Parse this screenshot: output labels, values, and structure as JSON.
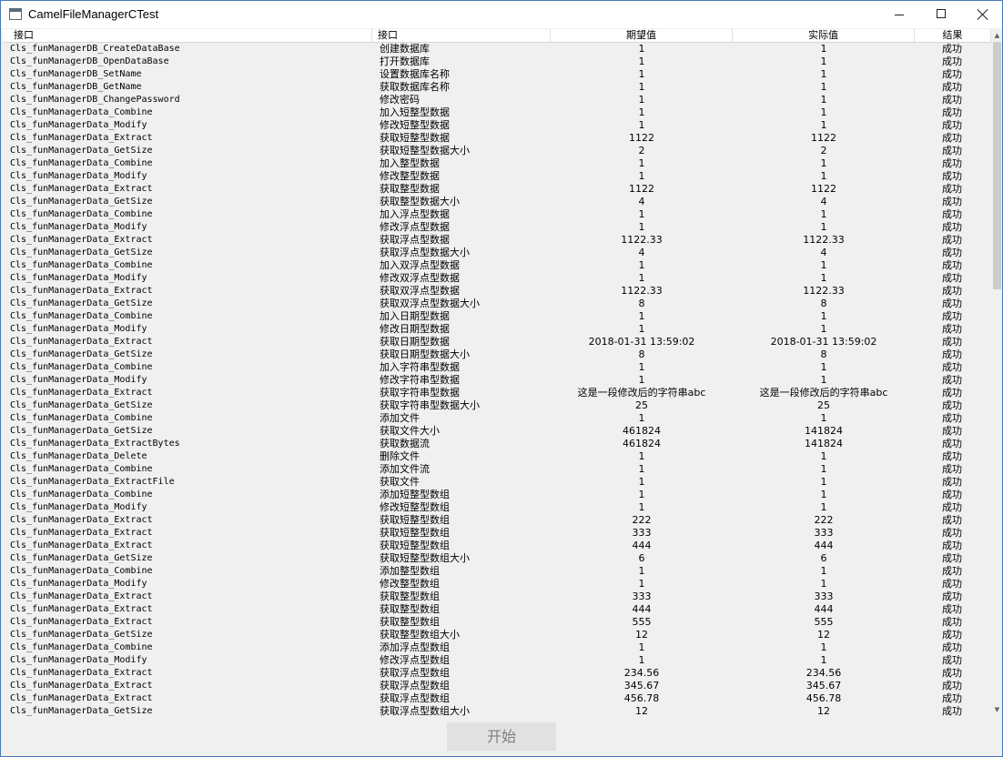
{
  "window": {
    "title": "CamelFileManagerCTest"
  },
  "table": {
    "headers": [
      "接口",
      "接口",
      "期望值",
      "实际值",
      "结果"
    ],
    "rows": [
      [
        "Cls_funManagerDB_CreateDataBase",
        "创建数据库",
        "1",
        "1",
        "成功"
      ],
      [
        "Cls_funManagerDB_OpenDataBase",
        "打开数据库",
        "1",
        "1",
        "成功"
      ],
      [
        "Cls_funManagerDB_SetName",
        "设置数据库名称",
        "1",
        "1",
        "成功"
      ],
      [
        "Cls_funManagerDB_GetName",
        "获取数据库名称",
        "1",
        "1",
        "成功"
      ],
      [
        "Cls_funManagerDB_ChangePassword",
        "修改密码",
        "1",
        "1",
        "成功"
      ],
      [
        "Cls_funManagerData_Combine",
        "加入短整型数据",
        "1",
        "1",
        "成功"
      ],
      [
        "Cls_funManagerData_Modify",
        "修改短整型数据",
        "1",
        "1",
        "成功"
      ],
      [
        "Cls_funManagerData_Extract",
        "获取短整型数据",
        "1122",
        "1122",
        "成功"
      ],
      [
        "Cls_funManagerData_GetSize",
        "获取短整型数据大小",
        "2",
        "2",
        "成功"
      ],
      [
        "Cls_funManagerData_Combine",
        "加入整型数据",
        "1",
        "1",
        "成功"
      ],
      [
        "Cls_funManagerData_Modify",
        "修改整型数据",
        "1",
        "1",
        "成功"
      ],
      [
        "Cls_funManagerData_Extract",
        "获取整型数据",
        "1122",
        "1122",
        "成功"
      ],
      [
        "Cls_funManagerData_GetSize",
        "获取整型数据大小",
        "4",
        "4",
        "成功"
      ],
      [
        "Cls_funManagerData_Combine",
        "加入浮点型数据",
        "1",
        "1",
        "成功"
      ],
      [
        "Cls_funManagerData_Modify",
        "修改浮点型数据",
        "1",
        "1",
        "成功"
      ],
      [
        "Cls_funManagerData_Extract",
        "获取浮点型数据",
        "1122.33",
        "1122.33",
        "成功"
      ],
      [
        "Cls_funManagerData_GetSize",
        "获取浮点型数据大小",
        "4",
        "4",
        "成功"
      ],
      [
        "Cls_funManagerData_Combine",
        "加入双浮点型数据",
        "1",
        "1",
        "成功"
      ],
      [
        "Cls_funManagerData_Modify",
        "修改双浮点型数据",
        "1",
        "1",
        "成功"
      ],
      [
        "Cls_funManagerData_Extract",
        "获取双浮点型数据",
        "1122.33",
        "1122.33",
        "成功"
      ],
      [
        "Cls_funManagerData_GetSize",
        "获取双浮点型数据大小",
        "8",
        "8",
        "成功"
      ],
      [
        "Cls_funManagerData_Combine",
        "加入日期型数据",
        "1",
        "1",
        "成功"
      ],
      [
        "Cls_funManagerData_Modify",
        "修改日期型数据",
        "1",
        "1",
        "成功"
      ],
      [
        "Cls_funManagerData_Extract",
        "获取日期型数据",
        "2018-01-31 13:59:02",
        "2018-01-31 13:59:02",
        "成功"
      ],
      [
        "Cls_funManagerData_GetSize",
        "获取日期型数据大小",
        "8",
        "8",
        "成功"
      ],
      [
        "Cls_funManagerData_Combine",
        "加入字符串型数据",
        "1",
        "1",
        "成功"
      ],
      [
        "Cls_funManagerData_Modify",
        "修改字符串型数据",
        "1",
        "1",
        "成功"
      ],
      [
        "Cls_funManagerData_Extract",
        "获取字符串型数据",
        "这是一段修改后的字符串abc",
        "这是一段修改后的字符串abc",
        "成功"
      ],
      [
        "Cls_funManagerData_GetSize",
        "获取字符串型数据大小",
        "25",
        "25",
        "成功"
      ],
      [
        "Cls_funManagerData_Combine",
        "添加文件",
        "1",
        "1",
        "成功"
      ],
      [
        "Cls_funManagerData_GetSize",
        "获取文件大小",
        "461824",
        "141824",
        "成功"
      ],
      [
        "Cls_funManagerData_ExtractBytes",
        "获取数据流",
        "461824",
        "141824",
        "成功"
      ],
      [
        "Cls_funManagerData_Delete",
        "删除文件",
        "1",
        "1",
        "成功"
      ],
      [
        "Cls_funManagerData_Combine",
        "添加文件流",
        "1",
        "1",
        "成功"
      ],
      [
        "Cls_funManagerData_ExtractFile",
        "获取文件",
        "1",
        "1",
        "成功"
      ],
      [
        "Cls_funManagerData_Combine",
        "添加短整型数组",
        "1",
        "1",
        "成功"
      ],
      [
        "Cls_funManagerData_Modify",
        "修改短整型数组",
        "1",
        "1",
        "成功"
      ],
      [
        "Cls_funManagerData_Extract",
        "获取短整型数组",
        "222",
        "222",
        "成功"
      ],
      [
        "Cls_funManagerData_Extract",
        "获取短整型数组",
        "333",
        "333",
        "成功"
      ],
      [
        "Cls_funManagerData_Extract",
        "获取短整型数组",
        "444",
        "444",
        "成功"
      ],
      [
        "Cls_funManagerData_GetSize",
        "获取短整型数组大小",
        "6",
        "6",
        "成功"
      ],
      [
        "Cls_funManagerData_Combine",
        "添加整型数组",
        "1",
        "1",
        "成功"
      ],
      [
        "Cls_funManagerData_Modify",
        "修改整型数组",
        "1",
        "1",
        "成功"
      ],
      [
        "Cls_funManagerData_Extract",
        "获取整型数组",
        "333",
        "333",
        "成功"
      ],
      [
        "Cls_funManagerData_Extract",
        "获取整型数组",
        "444",
        "444",
        "成功"
      ],
      [
        "Cls_funManagerData_Extract",
        "获取整型数组",
        "555",
        "555",
        "成功"
      ],
      [
        "Cls_funManagerData_GetSize",
        "获取整型数组大小",
        "12",
        "12",
        "成功"
      ],
      [
        "Cls_funManagerData_Combine",
        "添加浮点型数组",
        "1",
        "1",
        "成功"
      ],
      [
        "Cls_funManagerData_Modify",
        "修改浮点型数组",
        "1",
        "1",
        "成功"
      ],
      [
        "Cls_funManagerData_Extract",
        "获取浮点型数组",
        "234.56",
        "234.56",
        "成功"
      ],
      [
        "Cls_funManagerData_Extract",
        "获取浮点型数组",
        "345.67",
        "345.67",
        "成功"
      ],
      [
        "Cls_funManagerData_Extract",
        "获取浮点型数组",
        "456.78",
        "456.78",
        "成功"
      ],
      [
        "Cls_funManagerData_GetSize",
        "获取浮点型数组大小",
        "12",
        "12",
        "成功"
      ]
    ]
  },
  "footer": {
    "start_label": "开始"
  }
}
